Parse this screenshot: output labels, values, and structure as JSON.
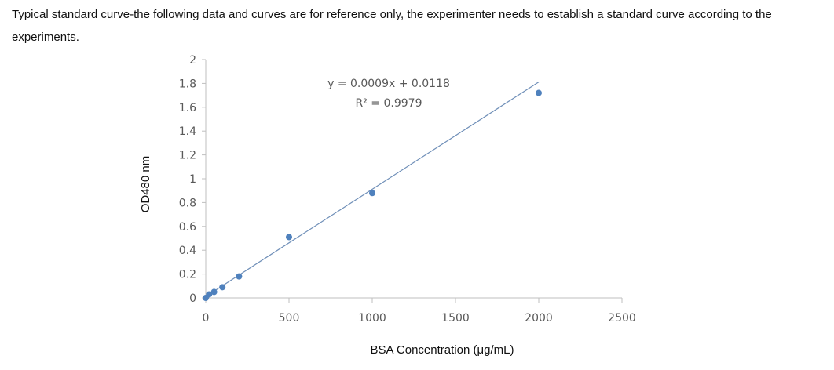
{
  "caption": "Typical standard curve-the following data and curves are for reference only, the experimenter needs to establish a standard curve according to the experiments.",
  "chart_data": {
    "type": "scatter",
    "title": "",
    "xlabel": "BSA Concentration (μg/mL)",
    "ylabel": "OD480 nm",
    "xlim": [
      0,
      2500
    ],
    "ylim": [
      0,
      2
    ],
    "x_ticks": [
      "0",
      "500",
      "1000",
      "1500",
      "2000",
      "2500"
    ],
    "y_ticks": [
      "0",
      "0.2",
      "0.4",
      "0.6",
      "0.8",
      "1",
      "1.2",
      "1.4",
      "1.6",
      "1.8",
      "2"
    ],
    "points": [
      {
        "x": 0,
        "y": 0.0
      },
      {
        "x": 20,
        "y": 0.03
      },
      {
        "x": 50,
        "y": 0.05
      },
      {
        "x": 100,
        "y": 0.09
      },
      {
        "x": 200,
        "y": 0.18
      },
      {
        "x": 500,
        "y": 0.51
      },
      {
        "x": 1000,
        "y": 0.88
      },
      {
        "x": 2000,
        "y": 1.72
      }
    ],
    "trendline": {
      "type": "linear",
      "slope": 0.0009,
      "intercept": 0.0118,
      "x_range": [
        0,
        2000
      ],
      "equation": "y = 0.0009x + 0.0118",
      "r2_label": "R² = 0.9979"
    },
    "colors": {
      "marker": "#4f81bd",
      "line": "#6f8fb8",
      "axis": "#bfbfbf"
    },
    "grid": false,
    "legend": "none"
  }
}
